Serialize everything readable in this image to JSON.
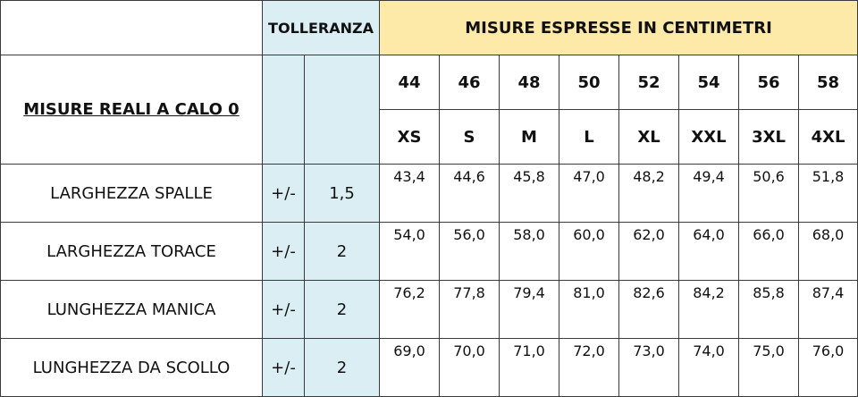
{
  "header": {
    "tolerance_title": "TOLLERANZA",
    "measures_title": "MISURE ESPRESSE IN CENTIMETRI",
    "main_label": "MISURE REALI A CALO 0"
  },
  "sizes_numeric": [
    "44",
    "46",
    "48",
    "50",
    "52",
    "54",
    "56",
    "58"
  ],
  "sizes_letter": [
    "XS",
    "S",
    "M",
    "L",
    "XL",
    "XXL",
    "3XL",
    "4XL"
  ],
  "rows": [
    {
      "label": "LARGHEZZA SPALLE",
      "tol_sign": "+/-",
      "tol_value": "1,5",
      "values": [
        "43,4",
        "44,6",
        "45,8",
        "47,0",
        "48,2",
        "49,4",
        "50,6",
        "51,8"
      ]
    },
    {
      "label": "LARGHEZZA TORACE",
      "tol_sign": "+/-",
      "tol_value": "2",
      "values": [
        "54,0",
        "56,0",
        "58,0",
        "60,0",
        "62,0",
        "64,0",
        "66,0",
        "68,0"
      ]
    },
    {
      "label": "LUNGHEZZA MANICA",
      "tol_sign": "+/-",
      "tol_value": "2",
      "values": [
        "76,2",
        "77,8",
        "79,4",
        "81,0",
        "82,6",
        "84,2",
        "85,8",
        "87,4"
      ]
    },
    {
      "label": "LUNGHEZZA DA SCOLLO",
      "tol_sign": "+/-",
      "tol_value": "2",
      "values": [
        "69,0",
        "70,0",
        "71,0",
        "72,0",
        "73,0",
        "74,0",
        "75,0",
        "76,0"
      ]
    }
  ],
  "colors": {
    "tolerance_bg": "#daeef3",
    "measures_header_bg": "#fde9a8",
    "border": "#3a3a3a"
  }
}
